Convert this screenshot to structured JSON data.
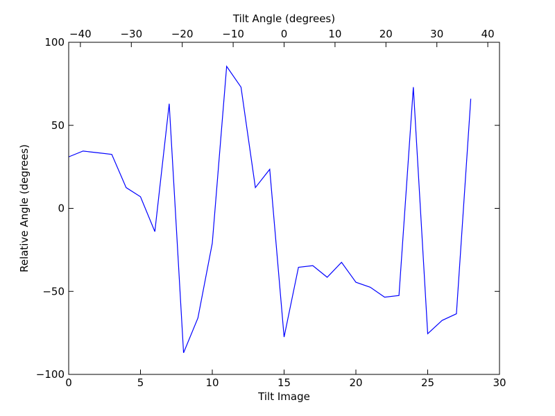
{
  "chart_data": {
    "type": "line",
    "xlabel": "Tilt Image",
    "ylabel": "Relative Angle (degrees)",
    "x2label": "Tilt Angle (degrees)",
    "xlim": [
      0,
      30
    ],
    "ylim": [
      -100,
      100
    ],
    "x2lim": [
      -42.3,
      42.3
    ],
    "x_ticks": [
      0,
      5,
      10,
      15,
      20,
      25,
      30
    ],
    "x_tick_labels": [
      "0",
      "5",
      "10",
      "15",
      "20",
      "25",
      "30"
    ],
    "y_ticks": [
      -100,
      -50,
      0,
      50,
      100
    ],
    "y_tick_labels": [
      "−100",
      "−50",
      "0",
      "50",
      "100"
    ],
    "x2_ticks": [
      -40,
      -30,
      -20,
      -10,
      0,
      10,
      20,
      30,
      40
    ],
    "x2_tick_labels": [
      "−40",
      "−30",
      "−20",
      "−10",
      "0",
      "10",
      "20",
      "30",
      "40"
    ],
    "grid": false,
    "series": [
      {
        "color": "#0000ff",
        "x": [
          0,
          1,
          2,
          3,
          4,
          5,
          6,
          7,
          8,
          9,
          10,
          11,
          12,
          13,
          14,
          15,
          16,
          17,
          18,
          19,
          20,
          21,
          22,
          23,
          24,
          25,
          26,
          27,
          28
        ],
        "values": [
          31,
          34.5,
          33.5,
          32.5,
          12.5,
          7,
          -14,
          63,
          -87,
          -66,
          -21,
          85.5,
          73,
          12.5,
          23.5,
          -77.5,
          -35.5,
          -34.5,
          -41.5,
          -32.5,
          -44.5,
          -47.5,
          -53.5,
          -52.5,
          73,
          -75.5,
          -67.5,
          -63.5,
          66
        ]
      }
    ]
  }
}
